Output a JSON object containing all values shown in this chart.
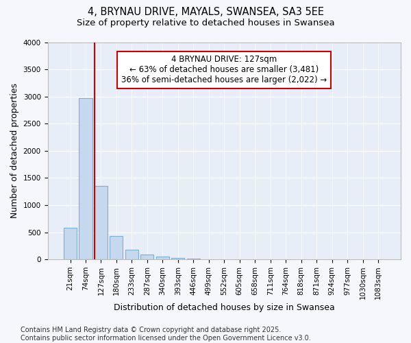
{
  "title": "4, BRYNAU DRIVE, MAYALS, SWANSEA, SA3 5EE",
  "subtitle": "Size of property relative to detached houses in Swansea",
  "xlabel": "Distribution of detached houses by size in Swansea",
  "ylabel": "Number of detached properties",
  "bar_color": "#c5d8ed",
  "bar_edge_color": "#7ab0d4",
  "plot_bg_color": "#e8eef8",
  "fig_bg_color": "#f5f7fc",
  "grid_color": "#ffffff",
  "categories": [
    "21sqm",
    "74sqm",
    "127sqm",
    "180sqm",
    "233sqm",
    "287sqm",
    "340sqm",
    "393sqm",
    "446sqm",
    "499sqm",
    "552sqm",
    "605sqm",
    "658sqm",
    "711sqm",
    "764sqm",
    "818sqm",
    "871sqm",
    "924sqm",
    "977sqm",
    "1030sqm",
    "1083sqm"
  ],
  "values": [
    580,
    2970,
    1350,
    430,
    175,
    95,
    50,
    25,
    15,
    0,
    0,
    0,
    0,
    0,
    0,
    0,
    0,
    0,
    0,
    0,
    0
  ],
  "red_line_index": 2,
  "annotation_title": "4 BRYNAU DRIVE: 127sqm",
  "annotation_line1": "← 63% of detached houses are smaller (3,481)",
  "annotation_line2": "36% of semi-detached houses are larger (2,022) →",
  "annotation_color": "#cc0000",
  "annotation_box_color": "#ffffff",
  "ylim": [
    0,
    4000
  ],
  "yticks": [
    0,
    500,
    1000,
    1500,
    2000,
    2500,
    3000,
    3500,
    4000
  ],
  "footer_line1": "Contains HM Land Registry data © Crown copyright and database right 2025.",
  "footer_line2": "Contains public sector information licensed under the Open Government Licence v3.0.",
  "title_fontsize": 10.5,
  "subtitle_fontsize": 9.5,
  "axis_label_fontsize": 9,
  "tick_fontsize": 7.5,
  "annotation_fontsize": 8.5,
  "footer_fontsize": 7
}
